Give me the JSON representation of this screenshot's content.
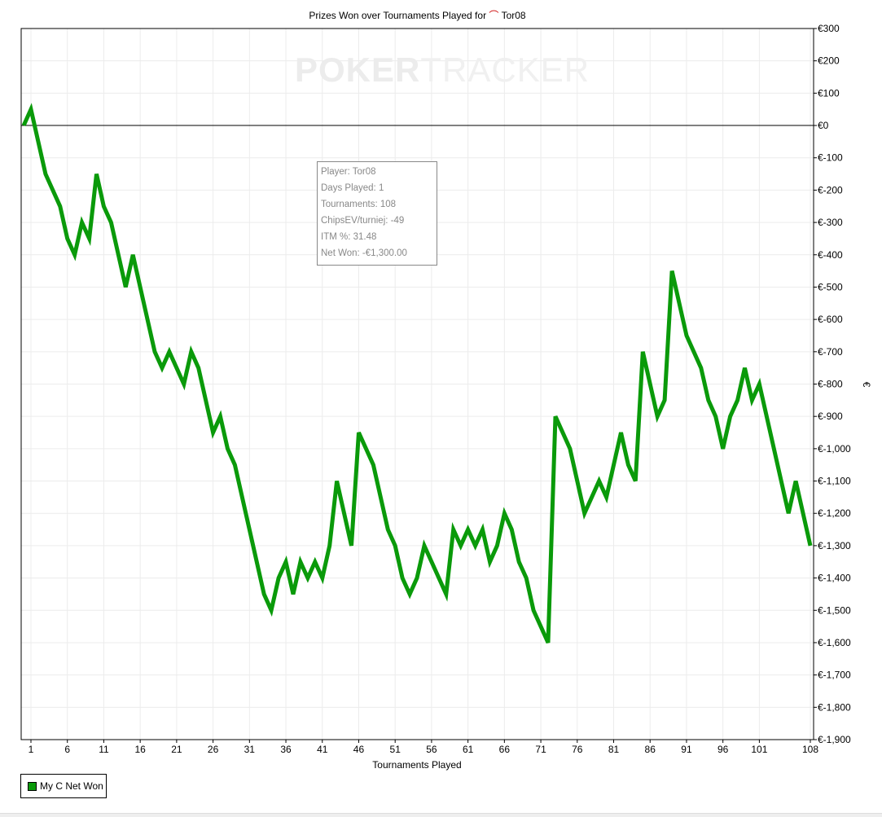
{
  "chart_data": {
    "type": "line",
    "title": "Prizes Won over Tournaments Played for",
    "player": "Tor08",
    "xlabel": "Tournaments Played",
    "ylabel": "€",
    "xlim": [
      0,
      108
    ],
    "ylim": [
      -1900,
      300
    ],
    "grid": true,
    "legend_position": "bottom-left",
    "x_ticks": [
      1,
      6,
      11,
      16,
      21,
      26,
      31,
      36,
      41,
      46,
      51,
      56,
      61,
      66,
      71,
      76,
      81,
      86,
      91,
      96,
      101,
      108
    ],
    "y_ticks": [
      300,
      200,
      100,
      0,
      -100,
      -200,
      -300,
      -400,
      -500,
      -600,
      -700,
      -800,
      -900,
      -1000,
      -1100,
      -1200,
      -1300,
      -1400,
      -1500,
      -1600,
      -1700,
      -1800,
      -1900
    ],
    "y_tick_labels": [
      "€300",
      "€200",
      "€100",
      "€0",
      "€-100",
      "€-200",
      "€-300",
      "€-400",
      "€-500",
      "€-600",
      "€-700",
      "€-800",
      "€-900",
      "€-1,000",
      "€-1,100",
      "€-1,200",
      "€-1,300",
      "€-1,400",
      "€-1,500",
      "€-1,600",
      "€-1,700",
      "€-1,800",
      "€-1,900"
    ],
    "series": [
      {
        "name": "My C Net Won",
        "color": "#0a9a0a",
        "x": [
          0,
          1,
          3,
          5,
          6,
          7,
          8,
          9,
          10,
          11,
          12,
          14,
          15,
          18,
          19,
          20,
          22,
          23,
          24,
          26,
          27,
          28,
          29,
          33,
          34,
          35,
          36,
          37,
          38,
          39,
          40,
          41,
          42,
          43,
          45,
          46,
          48,
          50,
          51,
          52,
          53,
          54,
          55,
          58,
          59,
          60,
          61,
          62,
          63,
          64,
          65,
          66,
          67,
          68,
          69,
          70,
          72,
          73,
          75,
          77,
          79,
          80,
          82,
          83,
          84,
          85,
          87,
          88,
          89,
          91,
          93,
          94,
          95,
          96,
          97,
          98,
          99,
          100,
          101,
          105,
          106,
          108
        ],
        "y": [
          0,
          50,
          -150,
          -250,
          -350,
          -400,
          -300,
          -350,
          -150,
          -250,
          -300,
          -500,
          -400,
          -700,
          -750,
          -700,
          -800,
          -700,
          -750,
          -950,
          -900,
          -1000,
          -1050,
          -1450,
          -1500,
          -1400,
          -1350,
          -1450,
          -1350,
          -1400,
          -1350,
          -1400,
          -1300,
          -1100,
          -1300,
          -950,
          -1050,
          -1250,
          -1300,
          -1400,
          -1450,
          -1400,
          -1300,
          -1450,
          -1250,
          -1300,
          -1250,
          -1300,
          -1250,
          -1350,
          -1300,
          -1200,
          -1250,
          -1350,
          -1400,
          -1500,
          -1600,
          -900,
          -1000,
          -1200,
          -1100,
          -1150,
          -950,
          -1050,
          -1100,
          -700,
          -900,
          -850,
          -450,
          -650,
          -750,
          -850,
          -900,
          -1000,
          -900,
          -850,
          -750,
          -850,
          -800,
          -1200,
          -1100,
          -1300
        ]
      }
    ]
  },
  "logo": {
    "bold": "POKER",
    "light": "TRACKER"
  },
  "tooltip": [
    "Player: Tor08",
    "Days Played: 1",
    "Tournaments: 108",
    "ChipsEV/turniej: -49",
    "ITM %: 31.48",
    "Net Won: -€1,300.00"
  ]
}
